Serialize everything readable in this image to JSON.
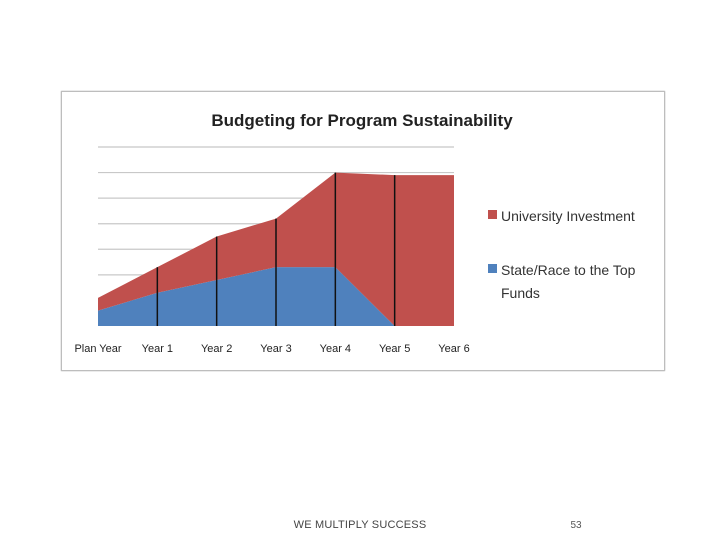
{
  "slide": {
    "footer_text": "WE MULTIPLY SUCCESS",
    "page_number": "53"
  },
  "chart_data": {
    "type": "area",
    "stacked": true,
    "title": "Budgeting for Program Sustainability",
    "categories": [
      "Plan Year",
      "Year 1",
      "Year 2",
      "Year 3",
      "Year 4",
      "Year 5",
      "Year 6"
    ],
    "x_ticks": [
      0,
      1,
      2,
      3,
      4,
      5,
      6
    ],
    "xlim": [
      0,
      6
    ],
    "ylim": [
      0,
      7
    ],
    "grid": true,
    "legend": "right",
    "series": [
      {
        "name": "State/Race to the Top Funds",
        "color": "#4f81bd",
        "x": [
          0,
          1,
          2,
          3,
          4,
          5,
          6
        ],
        "values": [
          0.6,
          1.3,
          1.8,
          2.3,
          2.3,
          0,
          0
        ]
      },
      {
        "name": "University Investment",
        "color": "#c0504d",
        "x": [
          0,
          1,
          2,
          3,
          4,
          5,
          6
        ],
        "values": [
          0.5,
          1.0,
          1.7,
          1.9,
          3.7,
          5.9,
          5.9
        ]
      }
    ],
    "vertical_markers_at": [
      1,
      2,
      3,
      4,
      5
    ]
  }
}
